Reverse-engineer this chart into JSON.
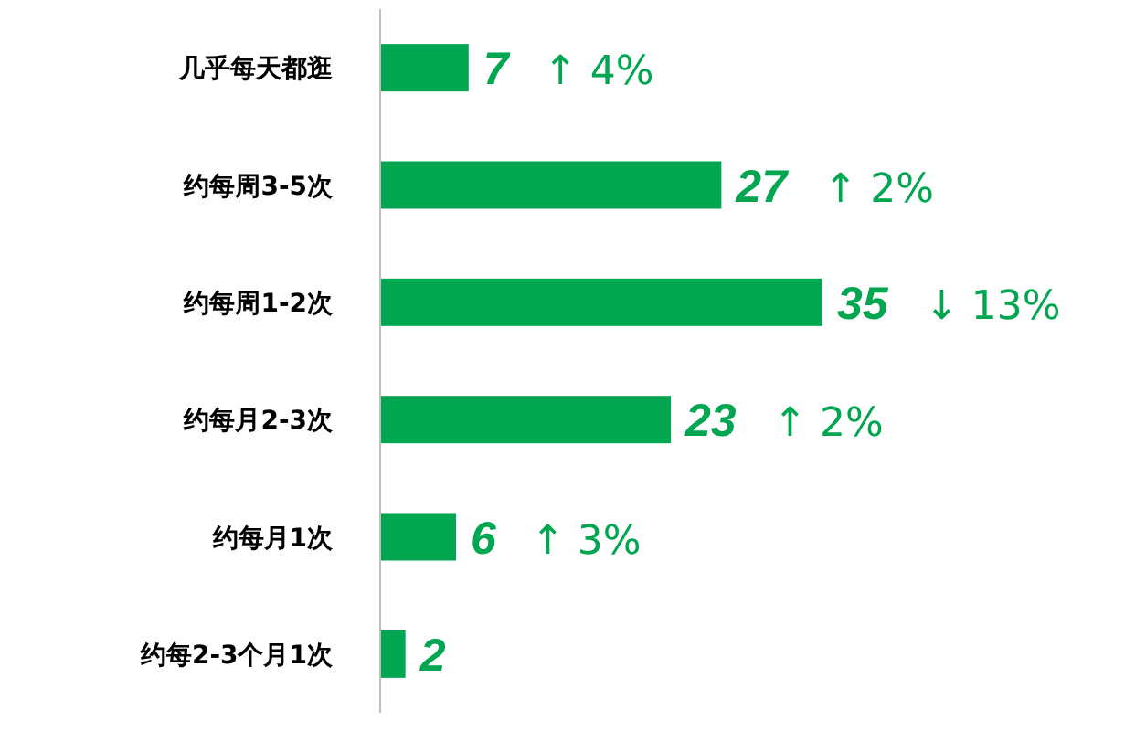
{
  "chart_data": {
    "type": "bar",
    "orientation": "horizontal",
    "categories": [
      "几乎每天都逛",
      "约每周3-5次",
      "约每周1-2次",
      "约每月2-3次",
      "约每月1次",
      "约每2-3个月1次"
    ],
    "values": [
      7,
      27,
      35,
      23,
      6,
      2
    ],
    "color": "#00a650",
    "data_labels": true,
    "annotations": [
      "↑ 4%",
      "↑ 2%",
      "↓ 13%",
      "↑ 2%",
      "↑ 3%"
    ]
  }
}
